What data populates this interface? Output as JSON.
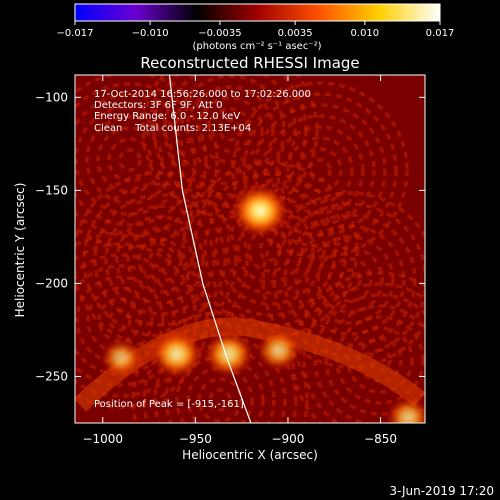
{
  "chart_data": {
    "type": "heatmap",
    "title": "Reconstructed RHESSI Image",
    "xlabel": "Heliocentric X (arcsec)",
    "ylabel": "Heliocentric Y (arcsec)",
    "xlim": [
      -1015,
      -826
    ],
    "ylim": [
      -275,
      -88
    ],
    "xticks": [
      -1000,
      -950,
      -900,
      -850
    ],
    "yticks": [
      -100,
      -150,
      -200,
      -250
    ],
    "xtick_labels": [
      "−1000",
      "−950",
      "−900",
      "−850"
    ],
    "ytick_labels": [
      "−100",
      "−150",
      "−200",
      "−250"
    ],
    "colorbar": {
      "range": [
        -0.017,
        0.017
      ],
      "ticks": [
        -0.017,
        -0.01,
        -0.0035,
        0.0035,
        0.01,
        0.017
      ],
      "tick_labels": [
        "−0.017",
        "−0.010",
        "−0.0035",
        "0.0035",
        "0.010",
        "0.017"
      ],
      "units": "(photons cm⁻² s⁻¹ asec⁻²)",
      "colors": [
        "#0000ff",
        "#6a00d0",
        "#000000",
        "#a00000",
        "#ff5000",
        "#ffd000",
        "#ffffff"
      ]
    },
    "annotations": [
      "17-Oct-2014 16:56:26.000 to 17:02:26.000",
      "Detectors: 3F 6F 9F, Att 0",
      "Energy Range: 6.0 - 12.0 keV",
      "Clean    Total counts: 2.13E+04"
    ],
    "peak_label": "Position of Peak = [-915,-161]",
    "peak": [
      -915,
      -161
    ],
    "sources": [
      {
        "x": -915,
        "y": -161,
        "intensity": 1.0
      },
      {
        "x": -960,
        "y": -238,
        "intensity": 0.8
      },
      {
        "x": -932,
        "y": -238,
        "intensity": 0.75
      },
      {
        "x": -905,
        "y": -236,
        "intensity": 0.55
      },
      {
        "x": -990,
        "y": -240,
        "intensity": 0.45
      },
      {
        "x": -835,
        "y": -272,
        "intensity": 0.55
      }
    ],
    "limb": [
      [
        -964,
        -88
      ],
      [
        -957,
        -150
      ],
      [
        -946,
        -200
      ],
      [
        -933,
        -240
      ],
      [
        -920,
        -275
      ]
    ],
    "limb_color": "#ffffff"
  },
  "footer": {
    "timestamp": "3-Jun-2019 17:20"
  }
}
